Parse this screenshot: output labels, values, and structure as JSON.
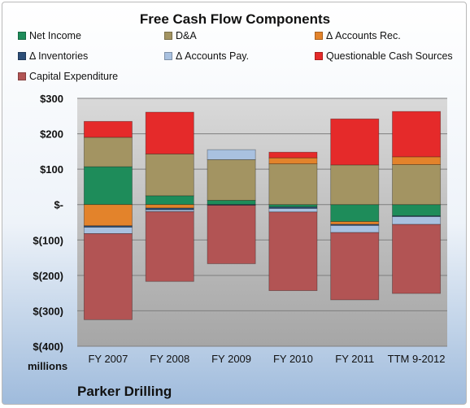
{
  "chart_data": {
    "type": "bar",
    "stacked": true,
    "title": "Free Cash Flow Components",
    "units_label": "millions",
    "footer": "Parker Drilling",
    "ylim": [
      -400,
      300
    ],
    "yticks": [
      300,
      200,
      100,
      0,
      -100,
      -200,
      -300,
      -400
    ],
    "ytick_labels": [
      "$300",
      "$200",
      "$100",
      "$-",
      "$(100)",
      "$(200)",
      "$(300)",
      "$(400)"
    ],
    "categories": [
      "FY 2007",
      "FY 2008",
      "FY 2009",
      "FY 2010",
      "FY 2011",
      "TTM 9-2012"
    ],
    "grid": true,
    "legend_position": "top",
    "series": [
      {
        "name": "Net Income",
        "color": "#1e8c5a",
        "values": [
          107,
          25,
          12,
          -7,
          -48,
          -32
        ]
      },
      {
        "name": "D&A",
        "color": "#a39462",
        "values": [
          83,
          118,
          115,
          115,
          112,
          113
        ]
      },
      {
        "name": "Δ Accounts Rec.",
        "color": "#e3832b",
        "values": [
          -60,
          -10,
          0,
          17,
          -8,
          22
        ]
      },
      {
        "name": "Δ Inventories",
        "color": "#2c4e78",
        "values": [
          -4,
          -5,
          -2,
          -4,
          -3,
          -2
        ]
      },
      {
        "name": "Δ Accounts Pay.",
        "color": "#a9c1e0",
        "values": [
          -18,
          -5,
          28,
          -10,
          -20,
          -22
        ]
      },
      {
        "name": "Questionable Cash Sources",
        "color": "#e52a2a",
        "values": [
          45,
          118,
          0,
          16,
          130,
          128
        ]
      },
      {
        "name": "Capital Expenditure",
        "color": "#b25454",
        "values": [
          -243,
          -197,
          -165,
          -222,
          -190,
          -195
        ]
      }
    ]
  }
}
